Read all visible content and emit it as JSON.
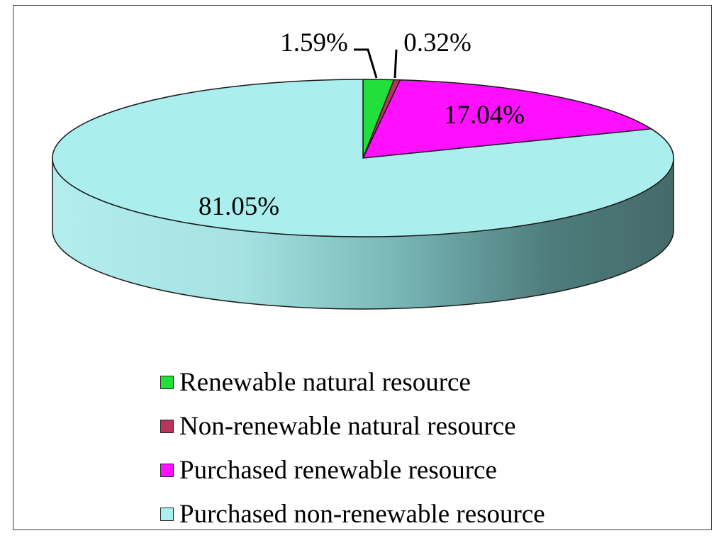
{
  "chart_data": {
    "type": "pie",
    "title": "",
    "slices": [
      {
        "label": "Renewable natural resource",
        "value": 1.59,
        "display": "1.59%",
        "color": "#22e03a"
      },
      {
        "label": "Non-renewable natural resource",
        "value": 0.32,
        "display": "0.32%",
        "color": "#b8365e"
      },
      {
        "label": "Purchased renewable resource",
        "value": 17.04,
        "display": "17.04%",
        "color": "#ff10ff"
      },
      {
        "label": "Purchased non-renewable resource",
        "value": 81.05,
        "display": "81.05%",
        "color": "#aaeeee"
      }
    ],
    "style": "3d",
    "legend_position": "bottom"
  }
}
